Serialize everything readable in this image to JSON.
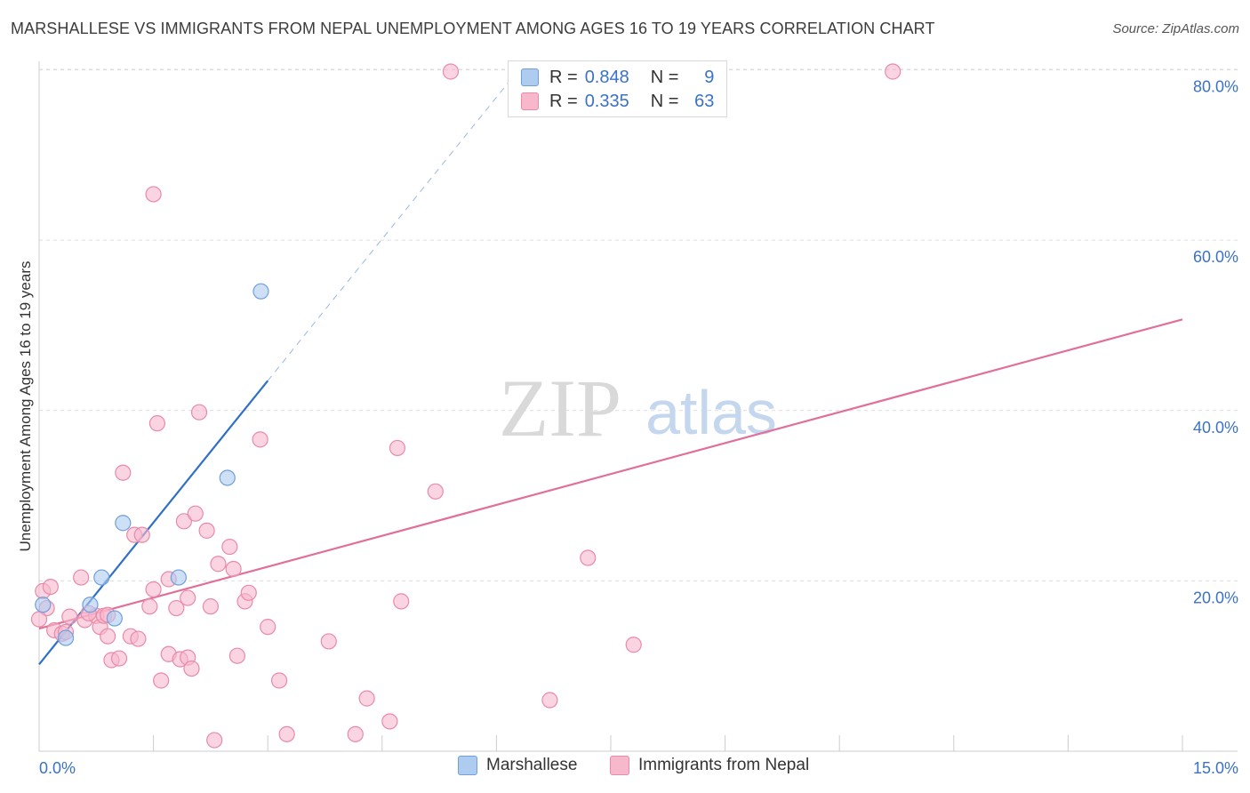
{
  "title": "MARSHALLESE VS IMMIGRANTS FROM NEPAL UNEMPLOYMENT AMONG AGES 16 TO 19 YEARS CORRELATION CHART",
  "source": "Source: ZipAtlas.com",
  "watermark": {
    "zip": "ZIP",
    "atlas": "atlas"
  },
  "colors": {
    "blue_fill": "#aecbf0",
    "blue_stroke": "#6f9fdc",
    "blue_line": "#3070c8",
    "pink_fill": "#f7b8cb",
    "pink_stroke": "#e98aa8",
    "pink_line": "#e0709a",
    "tick_label": "#3b72c4",
    "grid": "#dddddd"
  },
  "legend": {
    "r_label": "R =",
    "n_label": "N =",
    "series": [
      {
        "r": "0.848",
        "n": "9"
      },
      {
        "r": "0.335",
        "n": "63"
      }
    ]
  },
  "chart_data": {
    "type": "scatter",
    "title": "MARSHALLESE VS IMMIGRANTS FROM NEPAL UNEMPLOYMENT AMONG AGES 16 TO 19 YEARS CORRELATION CHART",
    "xlabel": "",
    "ylabel": "Unemployment Among Ages 16 to 19 years",
    "xlim": [
      0,
      15
    ],
    "ylim": [
      0,
      81
    ],
    "x_tick_labels": [
      "0.0%",
      "15.0%"
    ],
    "y_ticks": [
      20,
      40,
      60,
      80
    ],
    "y_tick_labels": [
      "20.0%",
      "40.0%",
      "60.0%",
      "80.0%"
    ],
    "grid": true,
    "series": [
      {
        "name": "Marshallese",
        "points": [
          [
            0.05,
            17.2
          ],
          [
            0.35,
            13.3
          ],
          [
            0.67,
            17.2
          ],
          [
            0.82,
            20.4
          ],
          [
            1.1,
            26.8
          ],
          [
            0.99,
            15.6
          ],
          [
            1.83,
            20.4
          ],
          [
            2.47,
            32.1
          ],
          [
            2.91,
            54.0
          ]
        ],
        "trend": {
          "x0": 0.0,
          "y0": 10.2,
          "x1": 3.0,
          "y1": 43.5,
          "dash_to": [
            6.2,
            79.0
          ]
        }
      },
      {
        "name": "Immigrants from Nepal",
        "points": [
          [
            0.05,
            18.8
          ],
          [
            0.1,
            16.8
          ],
          [
            0.2,
            14.2
          ],
          [
            0.3,
            13.8
          ],
          [
            0.4,
            15.8
          ],
          [
            0.55,
            20.4
          ],
          [
            0.6,
            15.4
          ],
          [
            0.75,
            15.9
          ],
          [
            0.8,
            14.6
          ],
          [
            0.85,
            15.9
          ],
          [
            0.9,
            13.5
          ],
          [
            0.95,
            10.7
          ],
          [
            1.05,
            10.9
          ],
          [
            1.1,
            32.7
          ],
          [
            1.2,
            13.5
          ],
          [
            1.25,
            25.4
          ],
          [
            1.3,
            13.2
          ],
          [
            1.35,
            25.4
          ],
          [
            1.45,
            17.0
          ],
          [
            1.5,
            19.0
          ],
          [
            1.55,
            38.5
          ],
          [
            1.5,
            65.4
          ],
          [
            1.6,
            8.3
          ],
          [
            1.7,
            20.2
          ],
          [
            1.7,
            11.4
          ],
          [
            1.8,
            16.8
          ],
          [
            1.85,
            10.8
          ],
          [
            1.9,
            27.0
          ],
          [
            1.95,
            18.0
          ],
          [
            1.95,
            11.0
          ],
          [
            2.0,
            9.7
          ],
          [
            2.05,
            27.9
          ],
          [
            2.1,
            39.8
          ],
          [
            2.2,
            25.9
          ],
          [
            2.25,
            17.0
          ],
          [
            2.3,
            1.3
          ],
          [
            2.35,
            22.0
          ],
          [
            2.5,
            24.0
          ],
          [
            2.55,
            21.4
          ],
          [
            2.6,
            11.2
          ],
          [
            2.7,
            17.6
          ],
          [
            2.75,
            18.6
          ],
          [
            2.9,
            36.6
          ],
          [
            3.0,
            14.6
          ],
          [
            3.15,
            8.3
          ],
          [
            3.25,
            2.0
          ],
          [
            3.8,
            12.9
          ],
          [
            4.15,
            2.0
          ],
          [
            4.3,
            6.2
          ],
          [
            4.6,
            3.5
          ],
          [
            4.7,
            35.6
          ],
          [
            4.75,
            17.6
          ],
          [
            5.2,
            30.5
          ],
          [
            5.4,
            79.8
          ],
          [
            6.7,
            6.0
          ],
          [
            7.2,
            22.7
          ],
          [
            7.8,
            12.5
          ],
          [
            11.2,
            79.8
          ],
          [
            0.0,
            15.5
          ],
          [
            0.15,
            19.3
          ],
          [
            0.65,
            16.2
          ],
          [
            0.9,
            16.0
          ],
          [
            0.35,
            14.0
          ]
        ],
        "trend": {
          "x0": 0.0,
          "y0": 14.4,
          "x1": 15.0,
          "y1": 50.7
        }
      }
    ]
  }
}
